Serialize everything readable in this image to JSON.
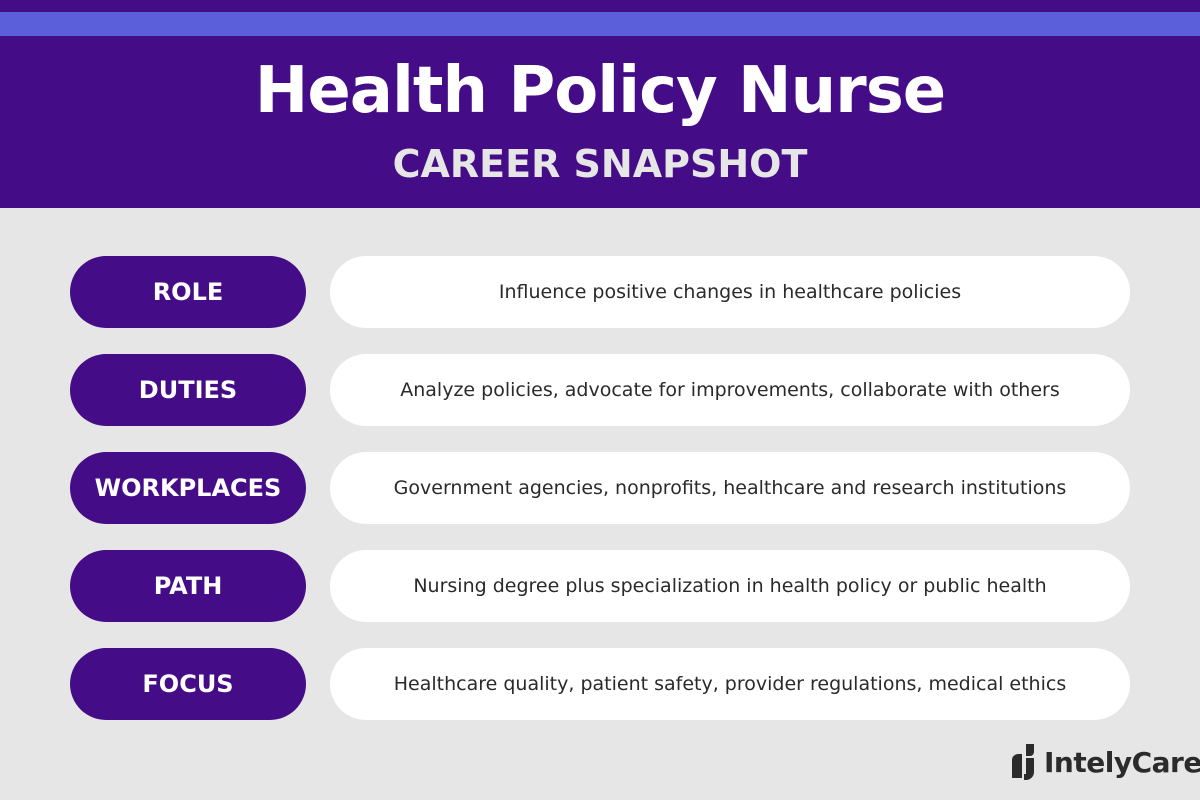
{
  "header": {
    "title": "Health Policy Nurse",
    "subtitle": "CAREER SNAPSHOT"
  },
  "colors": {
    "primary": "#450c87",
    "accent": "#5b5fd9",
    "background": "#e6e6e6"
  },
  "rows": [
    {
      "label": "ROLE",
      "text": "Influence positive changes in healthcare policies"
    },
    {
      "label": "DUTIES",
      "text": "Analyze policies, advocate for improvements, collaborate with others"
    },
    {
      "label": "WORKPLACES",
      "text": "Government agencies, nonprofits, healthcare and research institutions"
    },
    {
      "label": "PATH",
      "text": "Nursing degree plus specialization in health policy or public health"
    },
    {
      "label": "FOCUS",
      "text": "Healthcare quality, patient safety, provider regulations, medical ethics"
    }
  ],
  "logo": {
    "text": "IntelyCare",
    "icon": "intelycare-logo-icon"
  }
}
